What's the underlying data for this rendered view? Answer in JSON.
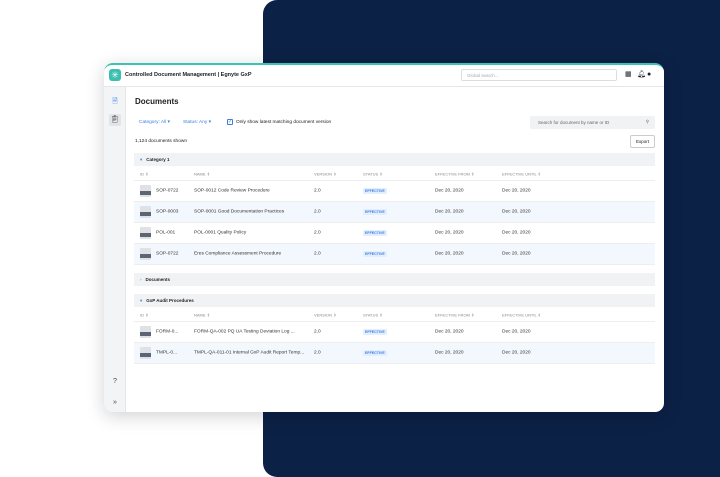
{
  "header": {
    "title": "Controlled Document Management | Egnyte GxP",
    "global_search_placeholder": "Global search..."
  },
  "page": {
    "title": "Documents",
    "category_filter": "Category: All",
    "status_filter": "Status: Any",
    "latest_version_checkbox": {
      "label": "Only show latest matching document version",
      "checked": true
    },
    "search_placeholder": "Search for document by name or ID",
    "count": "1,124 documents shown",
    "export_label": "Export"
  },
  "columns": [
    "ID",
    "NAME",
    "VERSION",
    "STATUS",
    "EFFECTIVE FROM",
    "EFFECTIVE UNTIL"
  ],
  "sections": [
    {
      "title": "Category 1",
      "expanded": true,
      "rows": [
        {
          "id": "SOP-0722",
          "name": "SOP-0012 Code Review Procedure",
          "version": "2.0",
          "status": "EFFECTIVE",
          "from": "Dec 20, 2020",
          "until": "Dec 20, 2020"
        },
        {
          "id": "SOP-0003",
          "name": "SOP-0001 Good Documentation Practices",
          "version": "2.0",
          "status": "EFFECTIVE",
          "from": "Dec 20, 2020",
          "until": "Dec 20, 2020"
        },
        {
          "id": "POL-001",
          "name": "POL-0001 Quality Policy",
          "version": "2.0",
          "status": "EFFECTIVE",
          "from": "Dec 20, 2020",
          "until": "Dec 20, 2020"
        },
        {
          "id": "SOP-0722",
          "name": "Eres Compliance Assessment Procedure",
          "version": "2.0",
          "status": "EFFECTIVE",
          "from": "Dec 20, 2020",
          "until": "Dec 20, 2020"
        }
      ]
    },
    {
      "title": "Documents",
      "expanded": false,
      "rows": []
    },
    {
      "title": "GxP Audit Procedures",
      "expanded": true,
      "rows": [
        {
          "id": "FORM-0...",
          "name": "FORM-QA-002 PQ UA Testing Deviation Log ...",
          "version": "2.0",
          "status": "EFFECTIVE",
          "from": "Dec 20, 2020",
          "until": "Dec 20, 2020"
        },
        {
          "id": "TMPL-0...",
          "name": "TMPL-QA-011-01 Internal GxP Audit Report Temp...",
          "version": "2.0",
          "status": "EFFECTIVE",
          "from": "Dec 20, 2020",
          "until": "Dec 20, 2020"
        }
      ]
    }
  ],
  "colors": {
    "accent": "#3b7de0",
    "brand": "#3cbfae",
    "navy": "#0c2146"
  }
}
